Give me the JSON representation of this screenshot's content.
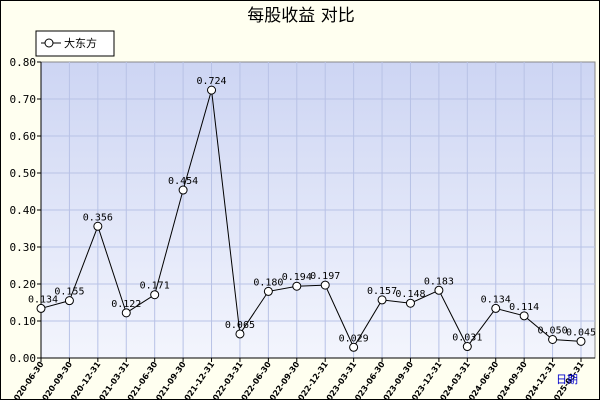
{
  "chart_data": {
    "type": "line",
    "title": "每股收益  对比",
    "xlabel": "日期",
    "ylabel": "",
    "ylim": [
      0,
      0.8
    ],
    "yticks": [
      "0.00",
      "0.10",
      "0.20",
      "0.30",
      "0.40",
      "0.50",
      "0.60",
      "0.70",
      "0.80"
    ],
    "grid": true,
    "legend_position": "top-left",
    "categories": [
      "2020-06-30",
      "2020-09-30",
      "2020-12-31",
      "2021-03-31",
      "2021-06-30",
      "2021-09-30",
      "2021-12-31",
      "2022-03-31",
      "2022-06-30",
      "2022-09-30",
      "2022-12-31",
      "2023-03-31",
      "2023-06-30",
      "2023-09-30",
      "2023-12-31",
      "2024-03-31",
      "2024-06-30",
      "2024-09-30",
      "2024-12-31",
      "2025-03-31"
    ],
    "series": [
      {
        "name": "大东方",
        "values": [
          0.134,
          0.155,
          0.356,
          0.122,
          0.171,
          0.454,
          0.724,
          0.065,
          0.18,
          0.194,
          0.197,
          0.029,
          0.157,
          0.148,
          0.183,
          0.031,
          0.134,
          0.114,
          0.05,
          0.045
        ],
        "labels": [
          "0.134",
          "0.155",
          "0.356",
          "0.122",
          "0.171",
          "0.454",
          "0.724",
          "0.065",
          "0.180",
          "0.194",
          "0.197",
          "0.029",
          "0.157",
          "0.148",
          "0.183",
          "0.031",
          "0.134",
          "0.114",
          "0.050",
          "0.045"
        ]
      }
    ]
  },
  "colors": {
    "frame_bg": "#fffff0",
    "plot_bg_top": "#cdd5f3",
    "plot_bg_bottom": "#f3f5fd",
    "grid": "#b8c2e6",
    "line": "#000000",
    "marker_fill": "#ffffff",
    "xaxis_name": "#0000cc"
  }
}
